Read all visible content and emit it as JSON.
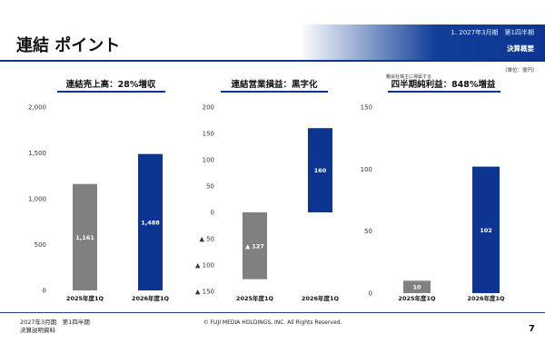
{
  "page_title": "連結 ポイント",
  "header": {
    "section": "1. 2027年3月期　第1四半期",
    "subtitle": "決算概要"
  },
  "unit_label": "（単位：億円）",
  "footer": {
    "left_line1": "2027年3月期　第1四半期",
    "left_line2": "決算説明資料",
    "copyright": "© FUJI MEDIA HOLDINGS, INC. All Rights Reserved.",
    "page_number": "7"
  },
  "colors": {
    "prev_year_bar": "#808080",
    "current_year_bar": "#0b3591",
    "underline": "#0b3591",
    "title_rule": "#0b3591"
  },
  "chart_data": [
    {
      "type": "bar",
      "title": "連結売上高：28%増収",
      "categories": [
        "2025年度1Q",
        "2026年度1Q"
      ],
      "values": [
        1161,
        1488
      ],
      "data_labels": [
        "1,161",
        "1,488"
      ],
      "ylim": [
        0,
        2000
      ],
      "yticks": [
        0,
        500,
        1000,
        1500,
        2000
      ],
      "ytick_labels": [
        "0",
        "500",
        "1,000",
        "1,500",
        "2,000"
      ],
      "grid": false
    },
    {
      "type": "bar",
      "title": "連結営業損益：黒字化",
      "categories": [
        "2025年度1Q",
        "2026年度1Q"
      ],
      "values": [
        -127,
        160
      ],
      "data_labels": [
        "▲ 127",
        "160"
      ],
      "ylim": [
        -150,
        200
      ],
      "yticks": [
        -150,
        -100,
        -50,
        0,
        50,
        100,
        150,
        200
      ],
      "ytick_labels": [
        "▲ 150",
        "▲ 100",
        "▲ 50",
        "0",
        "50",
        "100",
        "150",
        "200"
      ],
      "grid": false
    },
    {
      "type": "bar",
      "title": "四半期純利益：848%増益",
      "note": "親会社株主に帰属する",
      "categories": [
        "2025年度1Q",
        "2026年度1Q"
      ],
      "values": [
        10,
        102
      ],
      "data_labels": [
        "10",
        "102"
      ],
      "ylim": [
        0,
        150
      ],
      "yticks": [
        0,
        50,
        100,
        150
      ],
      "ytick_labels": [
        "0",
        "50",
        "100",
        "150"
      ],
      "grid": false
    }
  ]
}
